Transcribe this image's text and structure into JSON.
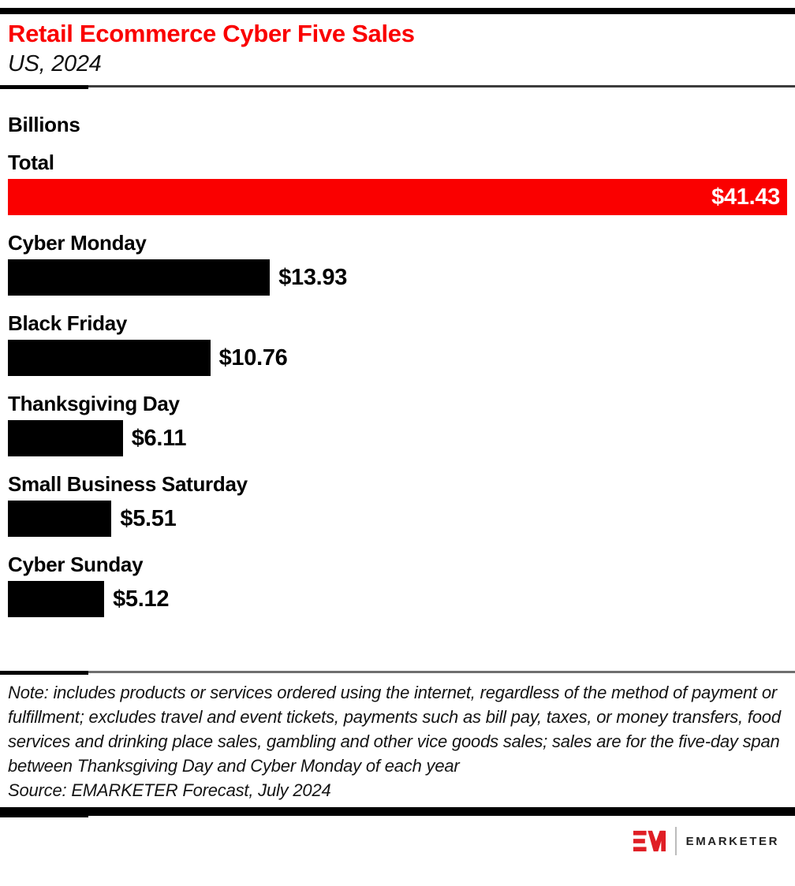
{
  "header": {
    "title": "Retail Ecommerce Cyber Five Sales",
    "subtitle": "US, 2024"
  },
  "chart_data": {
    "type": "bar",
    "orientation": "horizontal",
    "title": "Retail Ecommerce Cyber Five Sales",
    "subtitle": "US, 2024",
    "unit_label": "Billions",
    "categories": [
      "Total",
      "Cyber Monday",
      "Black Friday",
      "Thanksgiving Day",
      "Small Business Saturday",
      "Cyber Sunday"
    ],
    "values": [
      41.43,
      13.93,
      10.76,
      6.11,
      5.51,
      5.12
    ],
    "value_labels": [
      "$41.43",
      "$13.93",
      "$10.76",
      "$6.11",
      "$5.51",
      "$5.12"
    ],
    "xlim": [
      0,
      41.43
    ],
    "grid": false,
    "legend": false,
    "highlight_index": 0,
    "bar_color_default": "#000000",
    "bar_color_highlight": "#fa0000",
    "value_label_position": [
      "inside-right",
      "outside-right",
      "outside-right",
      "outside-right",
      "outside-right",
      "outside-right"
    ]
  },
  "footer": {
    "note": "Note: includes products or services ordered using the internet, regardless of the method of payment or fulfillment; excludes travel and event tickets, payments such as bill pay, taxes, or money transfers, food services and drinking place sales, gambling and other vice goods sales; sales are for the five-day span between Thanksgiving Day and Cyber Monday of each year",
    "source": "Source: EMARKETER Forecast, July 2024"
  },
  "branding": {
    "logo_monogram": "EM",
    "logo_text": "EMARKETER",
    "logo_red": "#e01e25"
  },
  "colors": {
    "accent_red": "#fa0000",
    "bar_black": "#000000",
    "text_black": "#000000"
  }
}
